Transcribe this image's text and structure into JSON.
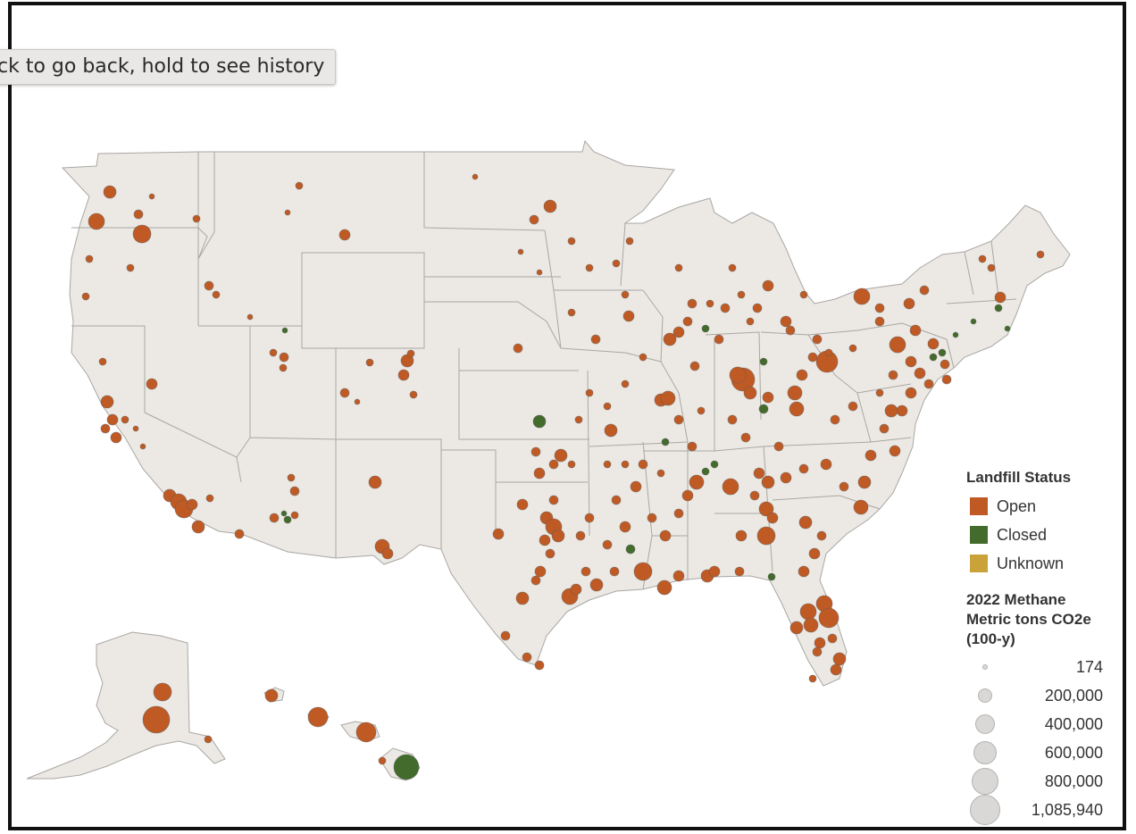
{
  "browser_tooltip": "ck to go back, hold to see history",
  "legend": {
    "status_title": "Landfill Status",
    "status_items": [
      {
        "label": "Open",
        "color": "#c05a24"
      },
      {
        "label": "Closed",
        "color": "#436b2c"
      },
      {
        "label": "Unknown",
        "color": "#c9a23a"
      }
    ],
    "size_title_lines": [
      "2022 Methane",
      "Metric tons CO2e",
      "(100-y)"
    ],
    "size_items": [
      {
        "label": "174",
        "value": 174
      },
      {
        "label": "200,000",
        "value": 200000
      },
      {
        "label": "400,000",
        "value": 400000
      },
      {
        "label": "600,000",
        "value": 600000
      },
      {
        "label": "800,000",
        "value": 800000
      },
      {
        "label": "1,085,940",
        "value": 1085940
      }
    ]
  },
  "colors": {
    "open": "#c05a24",
    "closed": "#436b2c",
    "unknown": "#c9a23a",
    "land": "#ece9e4",
    "border": "#a9a7a4"
  }
}
